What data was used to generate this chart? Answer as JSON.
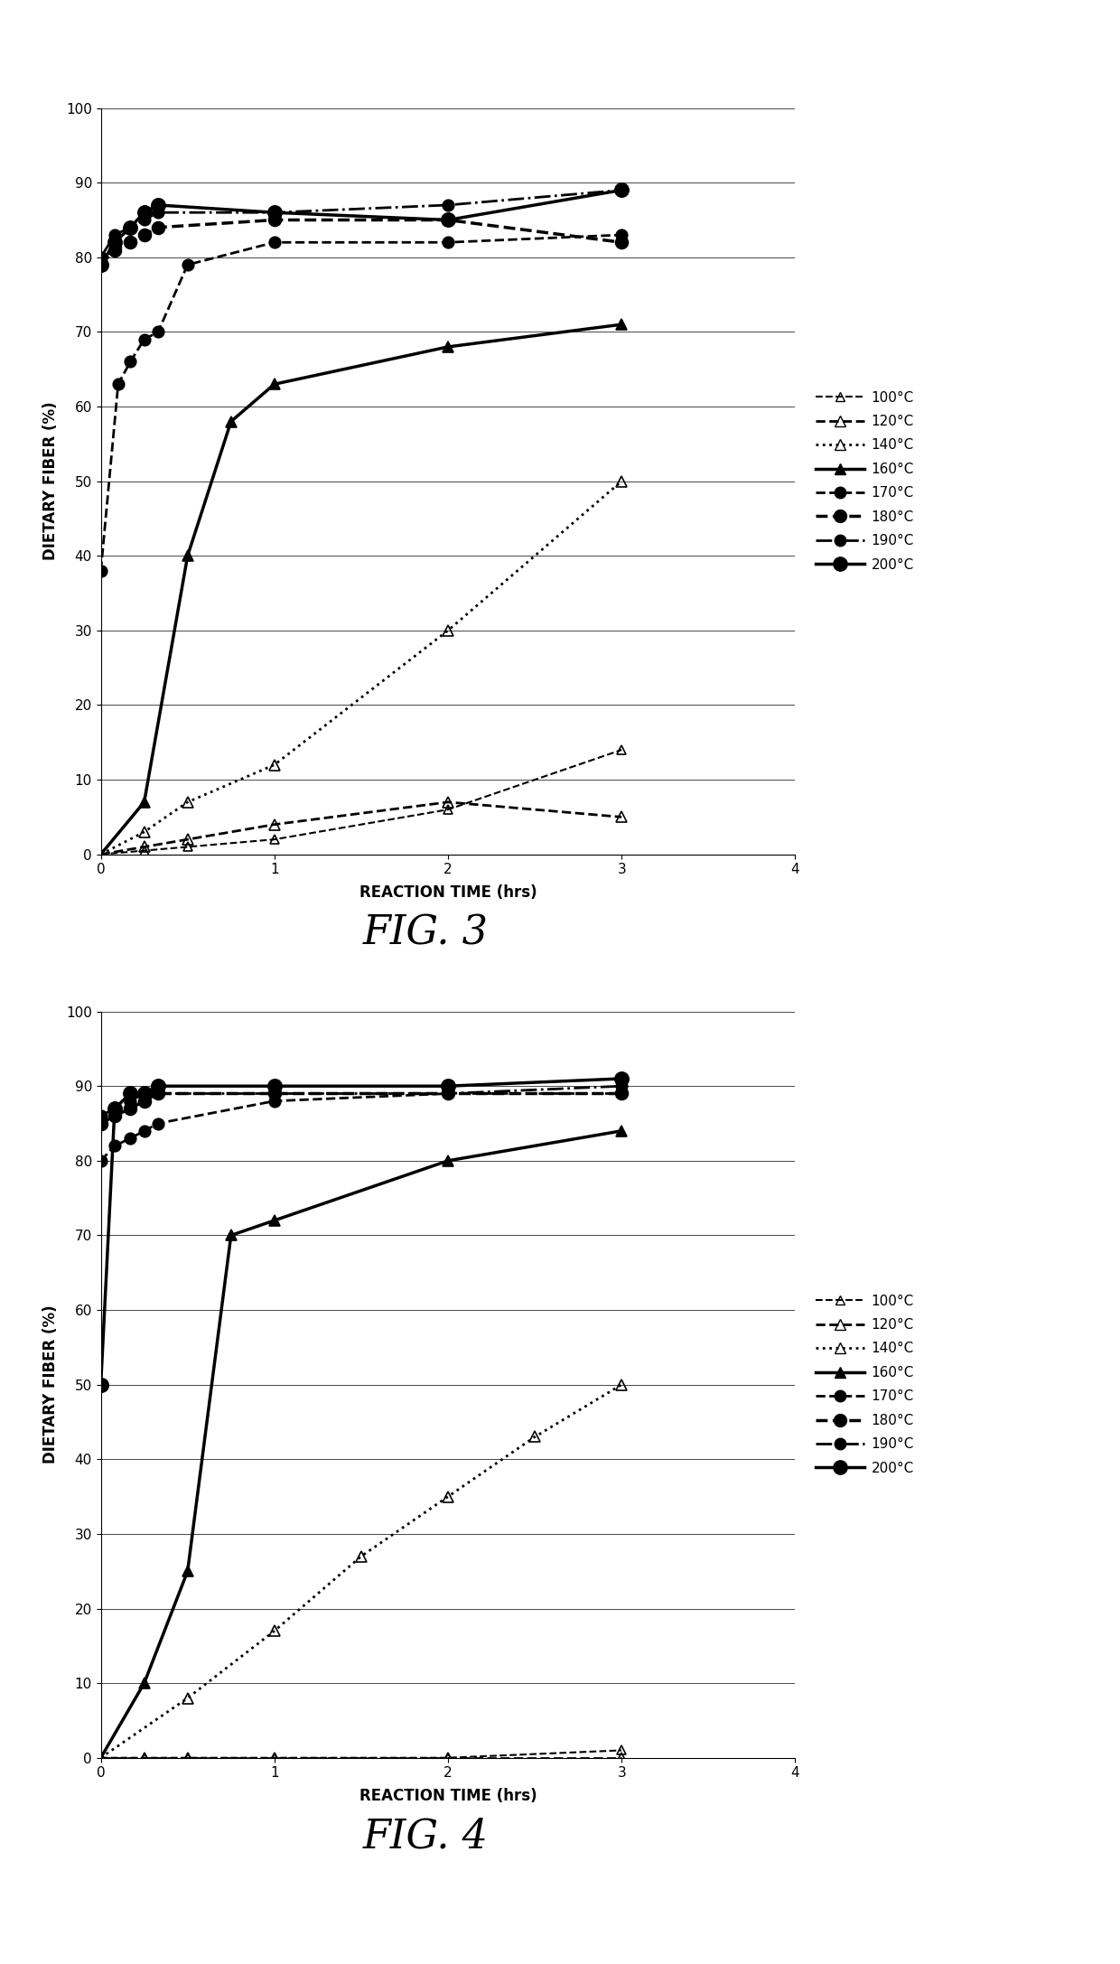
{
  "fig3": {
    "title": "FIG. 3",
    "xlabel": "REACTION TIME (hrs)",
    "ylabel": "DIETARY FIBER (%)",
    "xlim": [
      0,
      4
    ],
    "ylim": [
      0,
      100
    ],
    "xticks": [
      0,
      1,
      2,
      3,
      4
    ],
    "yticks": [
      0,
      10,
      20,
      30,
      40,
      50,
      60,
      70,
      80,
      90,
      100
    ],
    "series": [
      {
        "label": "100°C",
        "x": [
          0,
          0.25,
          0.5,
          1,
          2,
          3
        ],
        "y": [
          0,
          0.5,
          1,
          2,
          6,
          14
        ],
        "linestyle": "--",
        "marker": "^",
        "markersize": 7,
        "linewidth": 1.5,
        "mfc": "none"
      },
      {
        "label": "120°C",
        "x": [
          0,
          0.25,
          0.5,
          1,
          2,
          3
        ],
        "y": [
          0,
          1,
          2,
          4,
          7,
          5
        ],
        "linestyle": "--",
        "marker": "^",
        "markersize": 9,
        "linewidth": 2.0,
        "mfc": "none"
      },
      {
        "label": "140°C",
        "x": [
          0,
          0.25,
          0.5,
          1,
          2,
          3
        ],
        "y": [
          0,
          3,
          7,
          12,
          30,
          50
        ],
        "linestyle": ":",
        "marker": "^",
        "markersize": 8,
        "linewidth": 2.0,
        "mfc": "none"
      },
      {
        "label": "160°C",
        "x": [
          0,
          0.25,
          0.5,
          0.75,
          1,
          2,
          3
        ],
        "y": [
          0,
          7,
          40,
          58,
          63,
          68,
          71
        ],
        "linestyle": "-",
        "marker": "^",
        "markersize": 9,
        "linewidth": 2.5,
        "mfc": "black"
      },
      {
        "label": "170°C",
        "x": [
          0,
          0.1,
          0.17,
          0.25,
          0.33,
          0.5,
          1,
          2,
          3
        ],
        "y": [
          38,
          63,
          66,
          69,
          70,
          79,
          82,
          82,
          83
        ],
        "linestyle": "--",
        "marker": "o",
        "markersize": 9,
        "linewidth": 2.0,
        "mfc": "black"
      },
      {
        "label": "180°C",
        "x": [
          0,
          0.08,
          0.17,
          0.25,
          0.33,
          1,
          2,
          3
        ],
        "y": [
          79,
          81,
          82,
          83,
          84,
          85,
          85,
          82
        ],
        "linestyle": "--",
        "marker": "o",
        "markersize": 10,
        "linewidth": 2.5,
        "mfc": "black"
      },
      {
        "label": "190°C",
        "x": [
          0,
          0.08,
          0.17,
          0.25,
          0.33,
          1,
          2,
          3
        ],
        "y": [
          80,
          83,
          84,
          85,
          86,
          86,
          87,
          89
        ],
        "linestyle": "-.",
        "marker": "o",
        "markersize": 9,
        "linewidth": 2.0,
        "mfc": "black"
      },
      {
        "label": "200°C",
        "x": [
          0,
          0.08,
          0.17,
          0.25,
          0.33,
          1,
          2,
          3
        ],
        "y": [
          79,
          82,
          84,
          86,
          87,
          86,
          85,
          89
        ],
        "linestyle": "-",
        "marker": "o",
        "markersize": 11,
        "linewidth": 2.5,
        "mfc": "black"
      }
    ]
  },
  "fig4": {
    "title": "FIG. 4",
    "xlabel": "REACTION TIME (hrs)",
    "ylabel": "DIETARY FIBER (%)",
    "xlim": [
      0,
      4
    ],
    "ylim": [
      0,
      100
    ],
    "xticks": [
      0,
      1,
      2,
      3,
      4
    ],
    "yticks": [
      0,
      10,
      20,
      30,
      40,
      50,
      60,
      70,
      80,
      90,
      100
    ],
    "series": [
      {
        "label": "100°C",
        "x": [
          0,
          0.25,
          0.5,
          1,
          2,
          3
        ],
        "y": [
          0,
          0,
          0,
          0,
          0,
          1
        ],
        "linestyle": "--",
        "marker": "^",
        "markersize": 7,
        "linewidth": 1.5,
        "mfc": "none"
      },
      {
        "label": "120°C",
        "x": [
          0,
          0.25,
          0.5,
          1,
          2,
          3
        ],
        "y": [
          0,
          0,
          0,
          0,
          0,
          0
        ],
        "linestyle": "--",
        "marker": "^",
        "markersize": 9,
        "linewidth": 2.0,
        "mfc": "none"
      },
      {
        "label": "140°C",
        "x": [
          0,
          0.5,
          1,
          1.5,
          2,
          2.5,
          3
        ],
        "y": [
          0,
          8,
          17,
          27,
          35,
          43,
          50
        ],
        "linestyle": ":",
        "marker": "^",
        "markersize": 8,
        "linewidth": 2.0,
        "mfc": "none"
      },
      {
        "label": "160°C",
        "x": [
          0,
          0.25,
          0.5,
          0.75,
          1,
          2,
          3
        ],
        "y": [
          0,
          10,
          25,
          70,
          72,
          80,
          84
        ],
        "linestyle": "-",
        "marker": "^",
        "markersize": 9,
        "linewidth": 2.5,
        "mfc": "black"
      },
      {
        "label": "170°C",
        "x": [
          0,
          0.08,
          0.17,
          0.25,
          0.33,
          1,
          2,
          3
        ],
        "y": [
          80,
          82,
          83,
          84,
          85,
          88,
          89,
          89
        ],
        "linestyle": "--",
        "marker": "o",
        "markersize": 9,
        "linewidth": 2.0,
        "mfc": "black"
      },
      {
        "label": "180°C",
        "x": [
          0,
          0.08,
          0.17,
          0.25,
          0.33,
          1,
          2,
          3
        ],
        "y": [
          85,
          86,
          87,
          88,
          89,
          89,
          89,
          89
        ],
        "linestyle": "--",
        "marker": "o",
        "markersize": 10,
        "linewidth": 2.5,
        "mfc": "black"
      },
      {
        "label": "190°C",
        "x": [
          0,
          0.08,
          0.17,
          0.25,
          0.33,
          1,
          2,
          3
        ],
        "y": [
          86,
          87,
          88,
          89,
          89,
          89,
          89,
          90
        ],
        "linestyle": "-.",
        "marker": "o",
        "markersize": 9,
        "linewidth": 2.0,
        "mfc": "black"
      },
      {
        "label": "200°C",
        "x": [
          0,
          0.08,
          0.17,
          0.25,
          0.33,
          1,
          2,
          3
        ],
        "y": [
          50,
          87,
          89,
          89,
          90,
          90,
          90,
          91
        ],
        "linestyle": "-",
        "marker": "o",
        "markersize": 11,
        "linewidth": 2.5,
        "mfc": "black"
      }
    ]
  },
  "background_color": "#ffffff",
  "text_color": "#000000"
}
